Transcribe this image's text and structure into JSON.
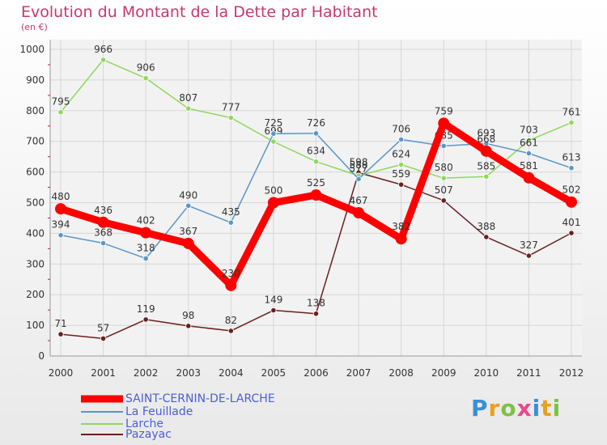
{
  "title": "Evolution du Montant de la Dette par Habitant",
  "subtitle": "(en €)",
  "logo_text": "Proxiti",
  "chart_data": {
    "type": "line",
    "title": "Evolution du Montant de la Dette par Habitant",
    "subtitle": "(en €)",
    "x": [
      "2000",
      "2001",
      "2002",
      "2003",
      "2004",
      "2005",
      "2006",
      "2007",
      "2008",
      "2009",
      "2010",
      "2011",
      "2012"
    ],
    "ylim": [
      0,
      1000
    ],
    "yticks": [
      "0",
      "100",
      "200",
      "300",
      "400",
      "500",
      "600",
      "700",
      "800",
      "900",
      "1000"
    ],
    "grid": true,
    "legend_position": "bottom-left",
    "series": [
      {
        "name": "SAINT-CERNIN-DE-LARCHE",
        "color": "#ff0000",
        "values": [
          480,
          436,
          402,
          367,
          230,
          500,
          525,
          467,
          382,
          759,
          668,
          581,
          502
        ],
        "labels": [
          "480",
          "436",
          "402",
          "367",
          "230",
          "500",
          "525",
          "467",
          "382",
          "759",
          "668",
          "581",
          "502"
        ]
      },
      {
        "name": "La Feuillade",
        "color": "#5b96c8",
        "values": [
          394,
          368,
          318,
          490,
          435,
          725,
          726,
          577,
          706,
          685,
          693,
          661,
          613
        ],
        "labels": [
          "394",
          "368",
          "318",
          "490",
          "435",
          "725",
          "726",
          "577",
          "706",
          "685",
          "693",
          "661",
          "613"
        ]
      },
      {
        "name": "Larche",
        "color": "#8fd85c",
        "values": [
          795,
          966,
          906,
          807,
          777,
          699,
          634,
          588,
          624,
          580,
          585,
          703,
          761
        ],
        "labels": [
          "795",
          "966",
          "906",
          "807",
          "777",
          "699",
          "634",
          "588",
          "624",
          "580",
          "585",
          "703",
          "761"
        ]
      },
      {
        "name": "Pazayac",
        "color": "#6b1f1f",
        "values": [
          71,
          57,
          119,
          98,
          82,
          149,
          138,
          598,
          559,
          507,
          388,
          327,
          401
        ],
        "labels": [
          "71",
          "57",
          "119",
          "98",
          "82",
          "149",
          "138",
          "598",
          "559",
          "507",
          "388",
          "327",
          "401"
        ]
      }
    ]
  }
}
